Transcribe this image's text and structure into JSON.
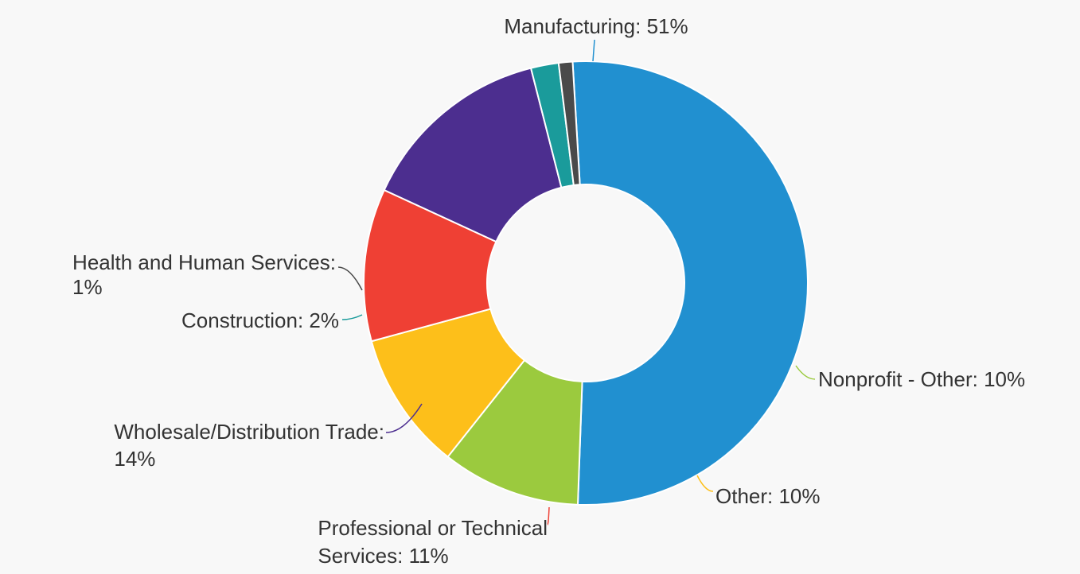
{
  "chart_data": {
    "type": "pie",
    "donut": true,
    "title": "",
    "legend": "none",
    "slices": [
      {
        "name": "Manufacturing",
        "value": 51,
        "label_lines": [
          "Manufacturing: 51%"
        ],
        "color": "#2190d0"
      },
      {
        "name": "Nonprofit - Other",
        "value": 10,
        "label_lines": [
          "Nonprofit - Other: 10%"
        ],
        "color": "#9bca3e"
      },
      {
        "name": "Other",
        "value": 10,
        "label_lines": [
          "Other: 10%"
        ],
        "color": "#fdbf1a"
      },
      {
        "name": "Professional or Technical Services",
        "value": 11,
        "label_lines": [
          "Professional or Technical",
          "Services: 11%"
        ],
        "color": "#ef4034"
      },
      {
        "name": "Wholesale/Distribution Trade",
        "value": 14,
        "label_lines": [
          "Wholesale/Distribution Trade:",
          "14%"
        ],
        "color": "#4c2e8f"
      },
      {
        "name": "Construction",
        "value": 2,
        "label_lines": [
          "Construction: 2%"
        ],
        "color": "#1a9b9b"
      },
      {
        "name": "Health and Human Services",
        "value": 1,
        "label_lines": [
          "Health and Human Services:",
          "1%"
        ],
        "color": "#4a4a4a"
      }
    ]
  }
}
